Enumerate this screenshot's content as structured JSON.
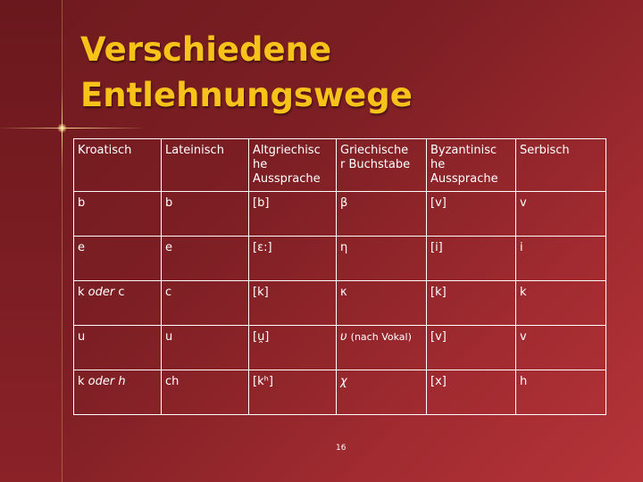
{
  "title": {
    "line1": "Verschiedene",
    "line2": "Entlehnungswege"
  },
  "table": {
    "headers": [
      "Kroatisch",
      "Lateinisch",
      "Altgriechisc\nhe\nAussprache",
      "Griechische\nr Buchstabe",
      "Byzantinisc\nhe\nAussprache",
      "Serbisch"
    ],
    "rows": [
      {
        "kroatisch": "b",
        "lateinisch": "b",
        "altgriechisch": "[b]",
        "buchstabe": "β",
        "buchstabe_note": "",
        "byzantinisch": "[v]",
        "serbisch": "v"
      },
      {
        "kroatisch": "e",
        "lateinisch": "e",
        "altgriechisch": "[ɛ:]",
        "buchstabe": "η",
        "buchstabe_note": "",
        "byzantinisch": "[i]",
        "serbisch": "i"
      },
      {
        "kroatisch_a": "k",
        "kroatisch_mid": "oder",
        "kroatisch_b": "c",
        "lateinisch": "c",
        "altgriechisch": "[k]",
        "buchstabe": "κ",
        "buchstabe_note": "",
        "byzantinisch": "[k]",
        "serbisch": "k"
      },
      {
        "kroatisch": "u",
        "lateinisch": "u",
        "altgriechisch": "[u̯]",
        "buchstabe": "υ",
        "buchstabe_note": "(nach Vokal)",
        "byzantinisch": "[v]",
        "serbisch": "v"
      },
      {
        "kroatisch_a": "k",
        "kroatisch_mid": "oder",
        "kroatisch_b": "h",
        "lateinisch": "ch",
        "altgriechisch": "[kʰ]",
        "buchstabe": "χ",
        "buchstabe_note": "",
        "byzantinisch": "[x]",
        "serbisch": "h"
      }
    ]
  },
  "page_number": "16"
}
